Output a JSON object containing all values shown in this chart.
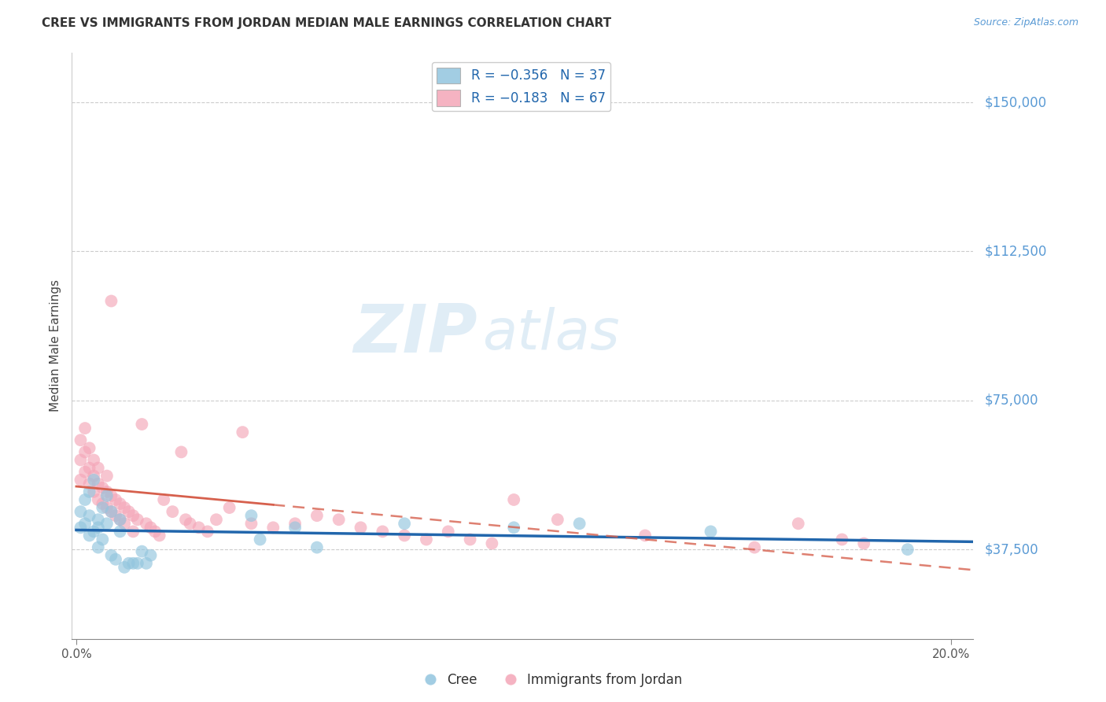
{
  "title": "CREE VS IMMIGRANTS FROM JORDAN MEDIAN MALE EARNINGS CORRELATION CHART",
  "source": "Source: ZipAtlas.com",
  "ylabel": "Median Male Earnings",
  "ytick_labels": [
    "$37,500",
    "$75,000",
    "$112,500",
    "$150,000"
  ],
  "ytick_values": [
    37500,
    75000,
    112500,
    150000
  ],
  "ymin": 15000,
  "ymax": 162500,
  "xmin": -0.001,
  "xmax": 0.205,
  "watermark_zip": "ZIP",
  "watermark_atlas": "atlas",
  "legend_blue_r": "R = -0.356",
  "legend_blue_n": "N = 37",
  "legend_pink_r": "R = -0.183",
  "legend_pink_n": "N = 67",
  "blue_color": "#92c5de",
  "pink_color": "#f4a6b8",
  "blue_line_color": "#2166ac",
  "pink_line_color": "#d6604d",
  "background_color": "#ffffff",
  "grid_color": "#cccccc",
  "blue_scatter_x": [
    0.001,
    0.001,
    0.002,
    0.002,
    0.003,
    0.003,
    0.003,
    0.004,
    0.004,
    0.005,
    0.005,
    0.005,
    0.006,
    0.006,
    0.007,
    0.007,
    0.008,
    0.008,
    0.009,
    0.01,
    0.01,
    0.011,
    0.012,
    0.013,
    0.014,
    0.015,
    0.016,
    0.017,
    0.04,
    0.042,
    0.05,
    0.055,
    0.075,
    0.1,
    0.115,
    0.145,
    0.19
  ],
  "blue_scatter_y": [
    47000,
    43000,
    50000,
    44000,
    52000,
    46000,
    41000,
    55000,
    42000,
    45000,
    43000,
    38000,
    48000,
    40000,
    51000,
    44000,
    47000,
    36000,
    35000,
    45000,
    42000,
    33000,
    34000,
    34000,
    34000,
    37000,
    34000,
    36000,
    46000,
    40000,
    43000,
    38000,
    44000,
    43000,
    44000,
    42000,
    37500
  ],
  "pink_scatter_x": [
    0.001,
    0.001,
    0.001,
    0.002,
    0.002,
    0.002,
    0.003,
    0.003,
    0.003,
    0.004,
    0.004,
    0.004,
    0.005,
    0.005,
    0.005,
    0.006,
    0.006,
    0.007,
    0.007,
    0.007,
    0.008,
    0.008,
    0.008,
    0.009,
    0.009,
    0.01,
    0.01,
    0.011,
    0.011,
    0.012,
    0.013,
    0.013,
    0.014,
    0.015,
    0.016,
    0.017,
    0.018,
    0.019,
    0.02,
    0.022,
    0.024,
    0.025,
    0.026,
    0.028,
    0.03,
    0.032,
    0.035,
    0.038,
    0.04,
    0.045,
    0.05,
    0.055,
    0.06,
    0.065,
    0.07,
    0.075,
    0.08,
    0.085,
    0.09,
    0.095,
    0.1,
    0.11,
    0.13,
    0.155,
    0.165,
    0.175,
    0.18
  ],
  "pink_scatter_y": [
    60000,
    65000,
    55000,
    62000,
    57000,
    68000,
    58000,
    54000,
    63000,
    56000,
    52000,
    60000,
    54000,
    50000,
    58000,
    53000,
    49000,
    52000,
    48000,
    56000,
    51000,
    47000,
    100000,
    50000,
    46000,
    49000,
    45000,
    48000,
    44000,
    47000,
    46000,
    42000,
    45000,
    69000,
    44000,
    43000,
    42000,
    41000,
    50000,
    47000,
    62000,
    45000,
    44000,
    43000,
    42000,
    45000,
    48000,
    67000,
    44000,
    43000,
    44000,
    46000,
    45000,
    43000,
    42000,
    41000,
    40000,
    42000,
    40000,
    39000,
    50000,
    45000,
    41000,
    38000,
    44000,
    40000,
    39000
  ]
}
